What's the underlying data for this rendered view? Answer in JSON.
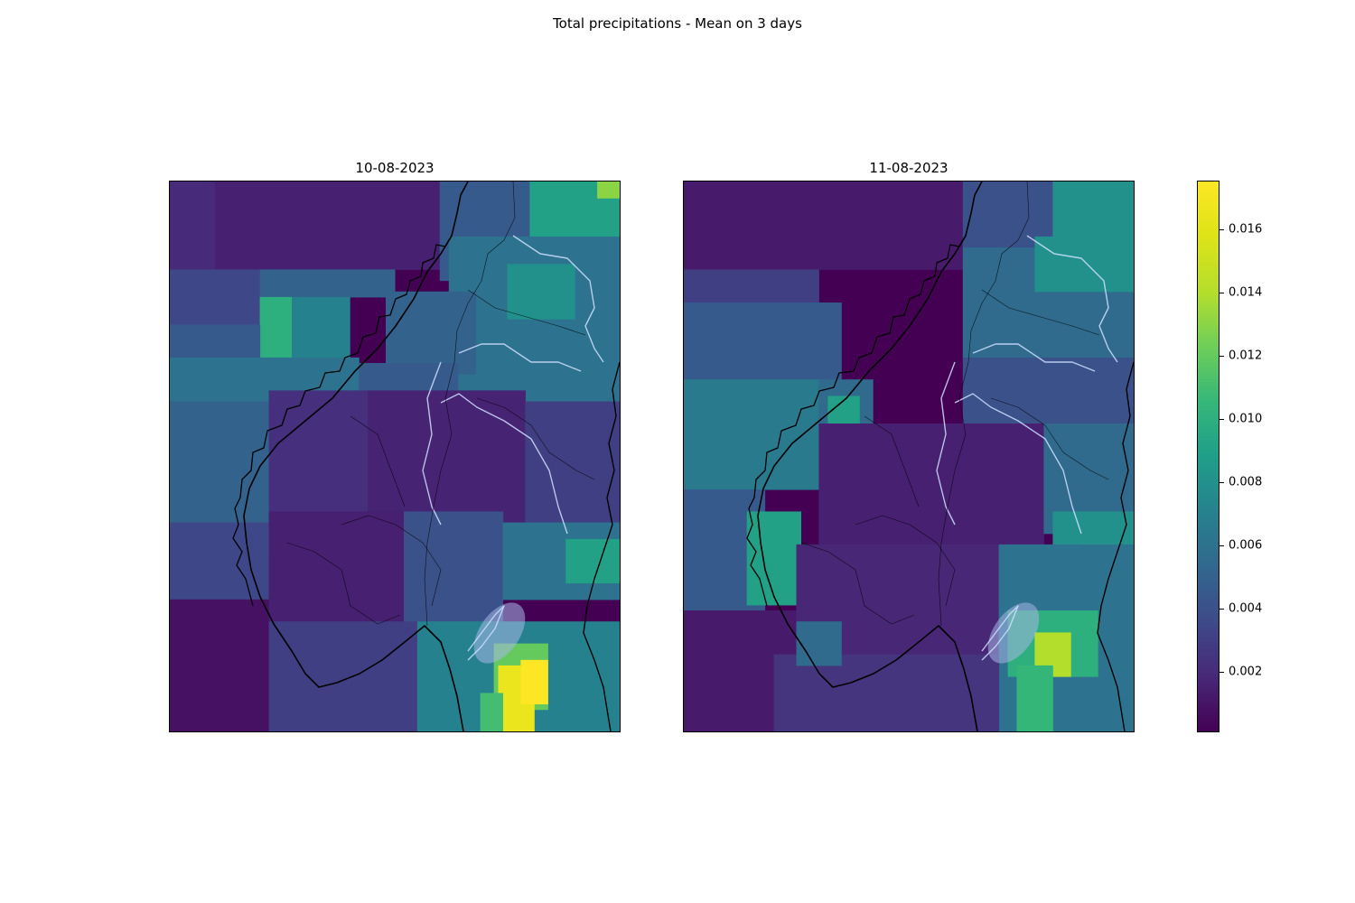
{
  "figure": {
    "suptitle": "Total precipitations - Mean on 3 days"
  },
  "panels": [
    {
      "title": "10-08-2023",
      "cells": [
        {
          "c": 0.05,
          "r": 0.0,
          "w": 0.55,
          "h": 0.16,
          "v": 0.0015
        },
        {
          "c": 0.0,
          "r": 0.0,
          "w": 0.1,
          "h": 0.2,
          "v": 0.002
        },
        {
          "c": 0.6,
          "r": 0.0,
          "w": 0.2,
          "h": 0.18,
          "v": 0.0045
        },
        {
          "c": 0.8,
          "r": 0.0,
          "w": 0.2,
          "h": 0.12,
          "v": 0.009
        },
        {
          "c": 0.95,
          "r": 0.0,
          "w": 0.05,
          "h": 0.03,
          "v": 0.013
        },
        {
          "c": 0.0,
          "r": 0.16,
          "w": 0.2,
          "h": 0.1,
          "v": 0.0035
        },
        {
          "c": 0.2,
          "r": 0.16,
          "w": 0.3,
          "h": 0.05,
          "v": 0.005
        },
        {
          "c": 0.2,
          "r": 0.21,
          "w": 0.2,
          "h": 0.12,
          "v": 0.007
        },
        {
          "c": 0.2,
          "r": 0.21,
          "w": 0.07,
          "h": 0.12,
          "v": 0.01
        },
        {
          "c": 0.0,
          "r": 0.26,
          "w": 0.2,
          "h": 0.08,
          "v": 0.0045
        },
        {
          "c": 0.0,
          "r": 0.32,
          "w": 0.42,
          "h": 0.08,
          "v": 0.006
        },
        {
          "c": 0.0,
          "r": 0.4,
          "w": 0.22,
          "h": 0.22,
          "v": 0.005
        },
        {
          "c": 0.0,
          "r": 0.62,
          "w": 0.22,
          "h": 0.14,
          "v": 0.0035
        },
        {
          "c": 0.0,
          "r": 0.76,
          "w": 0.22,
          "h": 0.24,
          "v": 0.0008
        },
        {
          "c": 0.62,
          "r": 0.1,
          "w": 0.38,
          "h": 0.32,
          "v": 0.006
        },
        {
          "c": 0.75,
          "r": 0.15,
          "w": 0.15,
          "h": 0.1,
          "v": 0.008
        },
        {
          "c": 0.48,
          "r": 0.2,
          "w": 0.2,
          "h": 0.15,
          "v": 0.005
        },
        {
          "c": 0.42,
          "r": 0.33,
          "w": 0.22,
          "h": 0.07,
          "v": 0.0045
        },
        {
          "c": 0.22,
          "r": 0.38,
          "w": 0.22,
          "h": 0.3,
          "v": 0.0022
        },
        {
          "c": 0.44,
          "r": 0.38,
          "w": 0.35,
          "h": 0.25,
          "v": 0.0016
        },
        {
          "c": 0.79,
          "r": 0.4,
          "w": 0.21,
          "h": 0.22,
          "v": 0.003
        },
        {
          "c": 0.22,
          "r": 0.6,
          "w": 0.3,
          "h": 0.2,
          "v": 0.0015
        },
        {
          "c": 0.52,
          "r": 0.6,
          "w": 0.22,
          "h": 0.2,
          "v": 0.004
        },
        {
          "c": 0.74,
          "r": 0.62,
          "w": 0.26,
          "h": 0.14,
          "v": 0.006
        },
        {
          "c": 0.88,
          "r": 0.65,
          "w": 0.12,
          "h": 0.08,
          "v": 0.009
        },
        {
          "c": 0.22,
          "r": 0.8,
          "w": 0.35,
          "h": 0.2,
          "v": 0.003
        },
        {
          "c": 0.55,
          "r": 0.8,
          "w": 0.1,
          "h": 0.2,
          "v": 0.007
        },
        {
          "c": 0.65,
          "r": 0.8,
          "w": 0.35,
          "h": 0.2,
          "v": 0.007
        },
        {
          "c": 0.72,
          "r": 0.84,
          "w": 0.12,
          "h": 0.12,
          "v": 0.012
        },
        {
          "c": 0.73,
          "r": 0.88,
          "w": 0.08,
          "h": 0.12,
          "v": 0.0165
        },
        {
          "c": 0.78,
          "r": 0.87,
          "w": 0.06,
          "h": 0.08,
          "v": 0.0175
        },
        {
          "c": 0.69,
          "r": 0.93,
          "w": 0.05,
          "h": 0.07,
          "v": 0.011
        }
      ]
    },
    {
      "title": "11-08-2023",
      "cells": [
        {
          "c": 0.0,
          "r": 0.0,
          "w": 0.62,
          "h": 0.16,
          "v": 0.0012
        },
        {
          "c": 0.62,
          "r": 0.0,
          "w": 0.2,
          "h": 0.12,
          "v": 0.004
        },
        {
          "c": 0.82,
          "r": 0.0,
          "w": 0.18,
          "h": 0.14,
          "v": 0.008
        },
        {
          "c": 0.0,
          "r": 0.16,
          "w": 0.3,
          "h": 0.06,
          "v": 0.003
        },
        {
          "c": 0.0,
          "r": 0.22,
          "w": 0.35,
          "h": 0.14,
          "v": 0.0045
        },
        {
          "c": 0.0,
          "r": 0.36,
          "w": 0.3,
          "h": 0.2,
          "v": 0.0065
        },
        {
          "c": 0.0,
          "r": 0.56,
          "w": 0.18,
          "h": 0.22,
          "v": 0.0045
        },
        {
          "c": 0.14,
          "r": 0.6,
          "w": 0.12,
          "h": 0.17,
          "v": 0.009
        },
        {
          "c": 0.0,
          "r": 0.78,
          "w": 0.25,
          "h": 0.22,
          "v": 0.0012
        },
        {
          "c": 0.3,
          "r": 0.36,
          "w": 0.12,
          "h": 0.08,
          "v": 0.0055
        },
        {
          "c": 0.32,
          "r": 0.39,
          "w": 0.07,
          "h": 0.06,
          "v": 0.009
        },
        {
          "c": 0.62,
          "r": 0.12,
          "w": 0.38,
          "h": 0.2,
          "v": 0.0055
        },
        {
          "c": 0.78,
          "r": 0.1,
          "w": 0.22,
          "h": 0.1,
          "v": 0.008
        },
        {
          "c": 0.62,
          "r": 0.32,
          "w": 0.38,
          "h": 0.12,
          "v": 0.004
        },
        {
          "c": 0.3,
          "r": 0.44,
          "w": 0.5,
          "h": 0.22,
          "v": 0.0015
        },
        {
          "c": 0.8,
          "r": 0.44,
          "w": 0.2,
          "h": 0.2,
          "v": 0.0055
        },
        {
          "c": 0.82,
          "r": 0.6,
          "w": 0.18,
          "h": 0.14,
          "v": 0.008
        },
        {
          "c": 0.88,
          "r": 0.66,
          "w": 0.08,
          "h": 0.08,
          "v": 0.011
        },
        {
          "c": 0.25,
          "r": 0.66,
          "w": 0.45,
          "h": 0.2,
          "v": 0.0018
        },
        {
          "c": 0.7,
          "r": 0.66,
          "w": 0.3,
          "h": 0.34,
          "v": 0.006
        },
        {
          "c": 0.72,
          "r": 0.78,
          "w": 0.2,
          "h": 0.12,
          "v": 0.01
        },
        {
          "c": 0.78,
          "r": 0.82,
          "w": 0.08,
          "h": 0.08,
          "v": 0.014
        },
        {
          "c": 0.74,
          "r": 0.88,
          "w": 0.08,
          "h": 0.12,
          "v": 0.0105
        },
        {
          "c": 0.2,
          "r": 0.86,
          "w": 0.5,
          "h": 0.14,
          "v": 0.0025
        },
        {
          "c": 0.25,
          "r": 0.8,
          "w": 0.1,
          "h": 0.08,
          "v": 0.0055
        }
      ]
    }
  ],
  "colorbar": {
    "colormap": "viridis",
    "vmin": 0.0001,
    "vmax": 0.0175,
    "ticks": [
      {
        "value": 0.002,
        "label": "0.002"
      },
      {
        "value": 0.004,
        "label": "0.004"
      },
      {
        "value": 0.006,
        "label": "0.006"
      },
      {
        "value": 0.008,
        "label": "0.008"
      },
      {
        "value": 0.01,
        "label": "0.010"
      },
      {
        "value": 0.012,
        "label": "0.012"
      },
      {
        "value": 0.014,
        "label": "0.014"
      },
      {
        "value": 0.016,
        "label": "0.016"
      }
    ]
  }
}
